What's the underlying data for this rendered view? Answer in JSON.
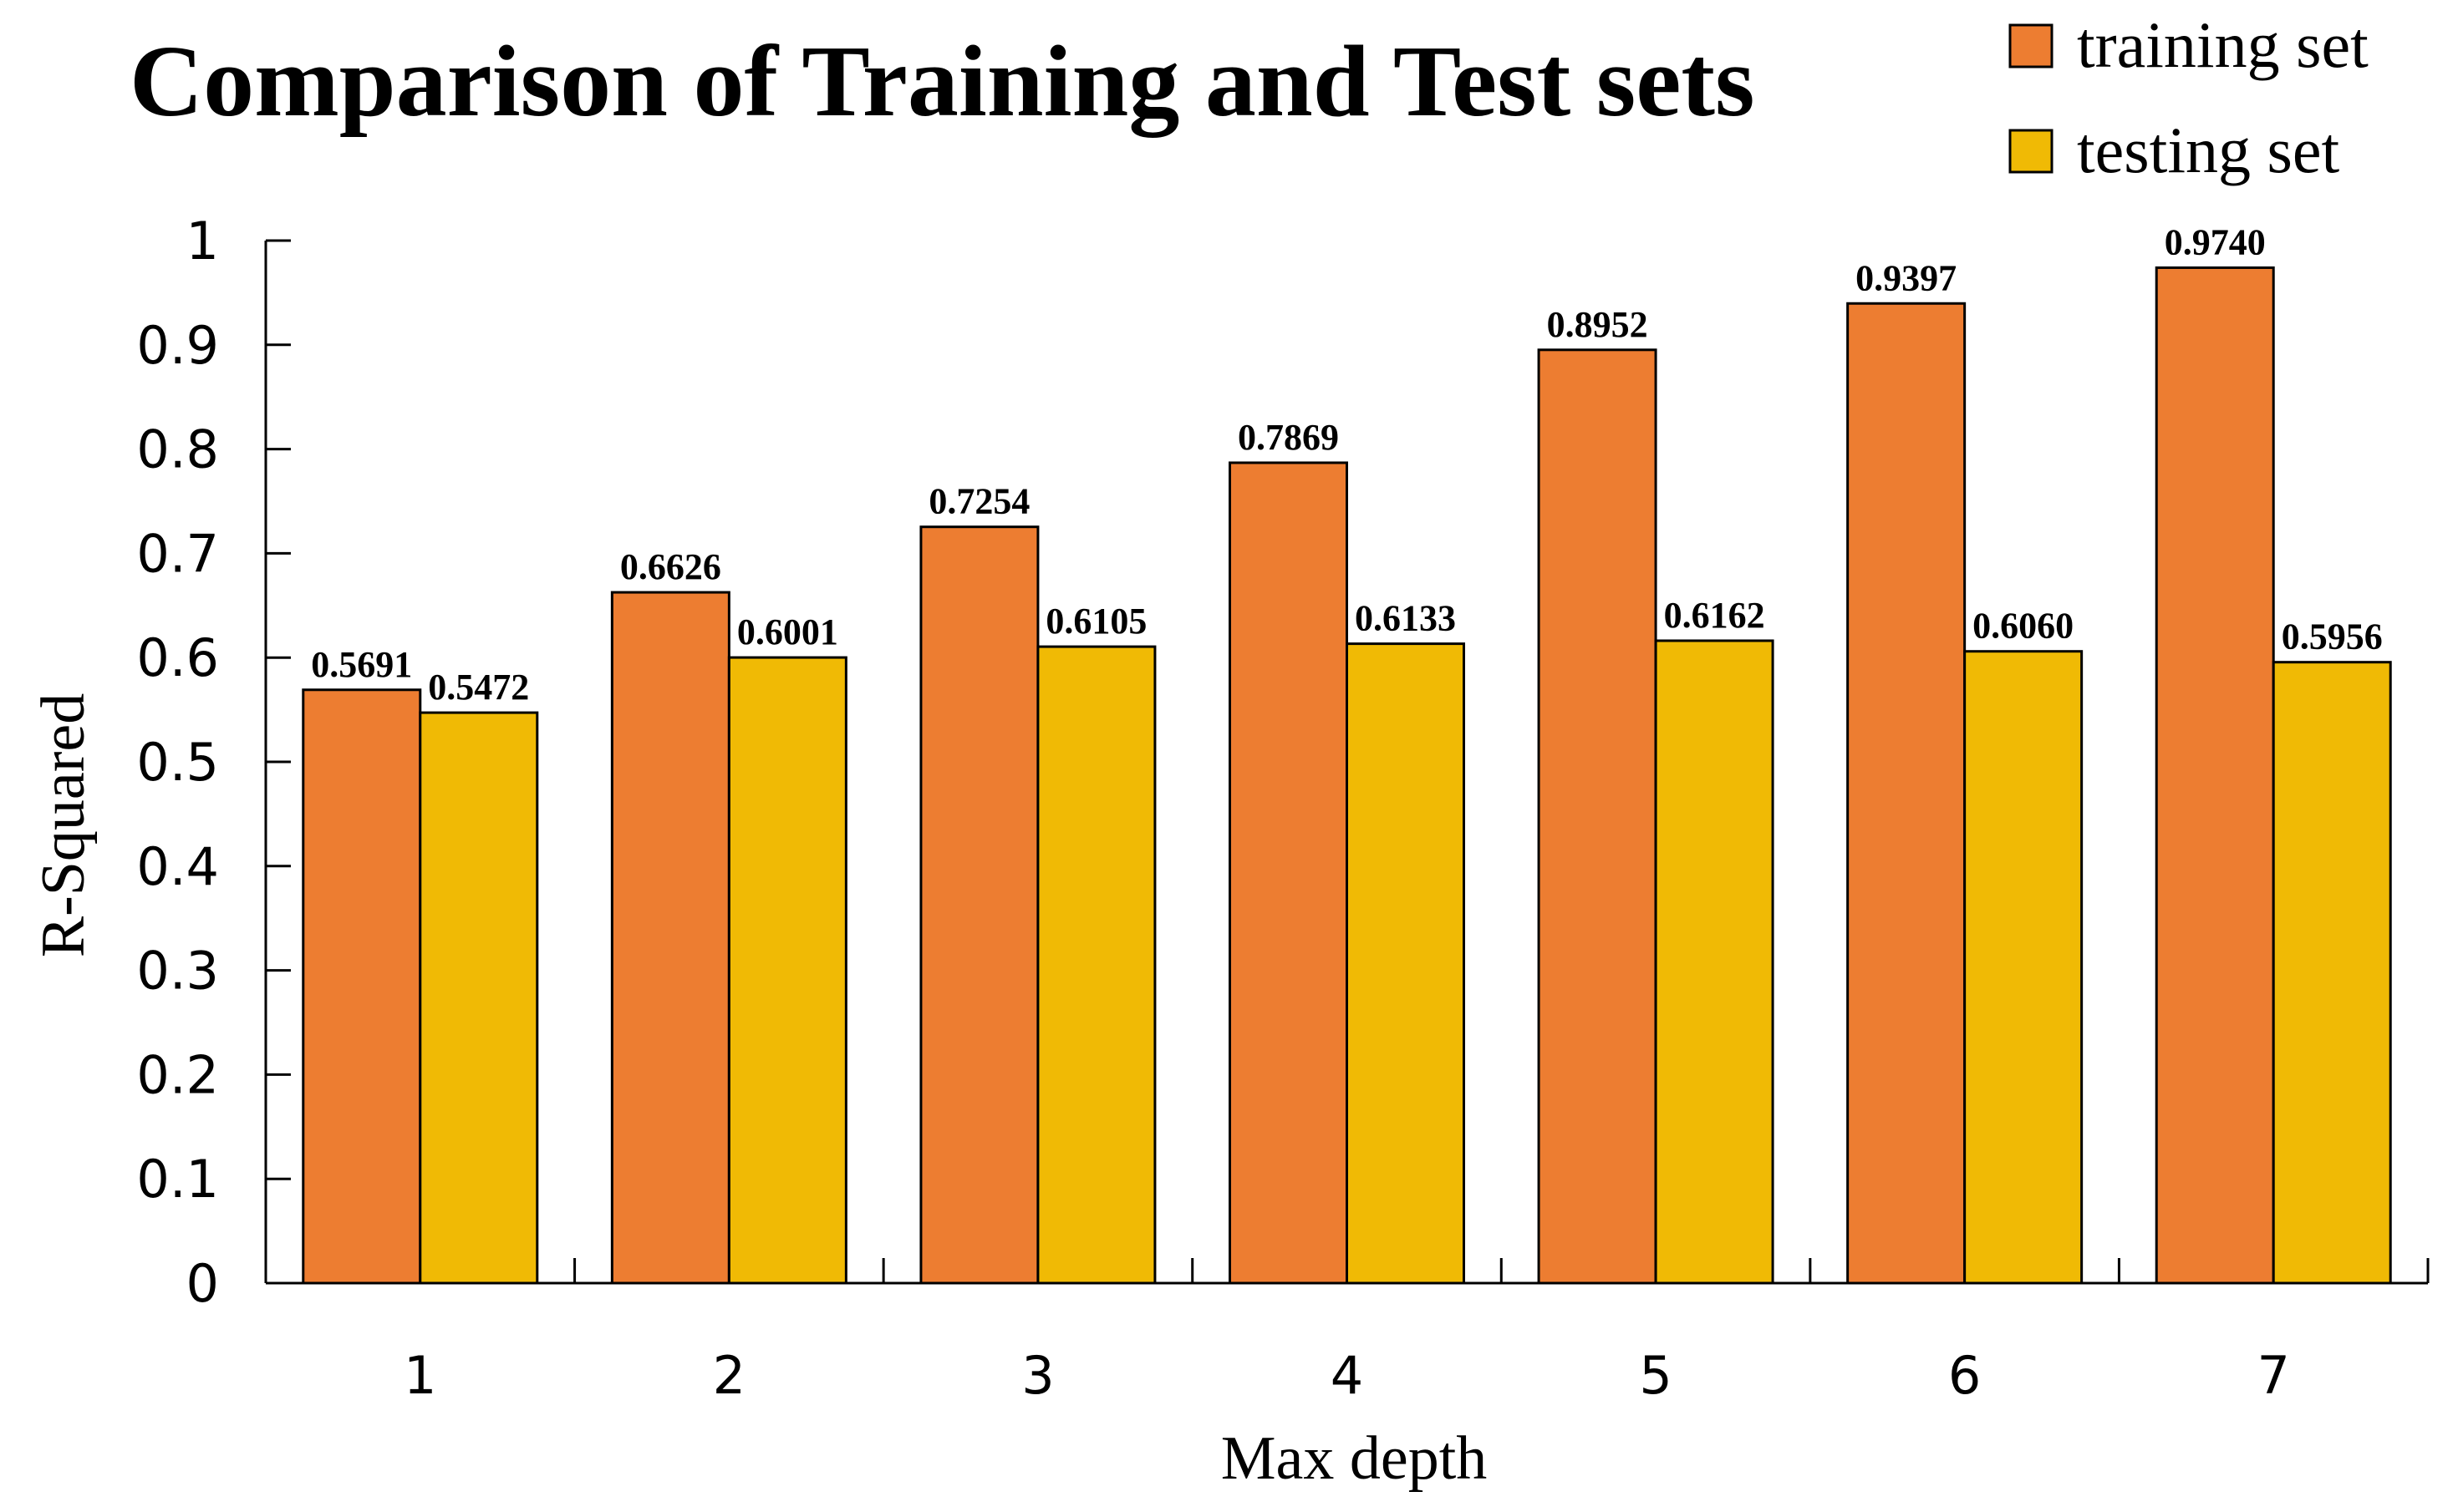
{
  "chart_data": {
    "type": "bar",
    "title": "Comparison of Training and Test sets",
    "xlabel": "Max depth",
    "ylabel": "R-Squared",
    "ylim": [
      0,
      1
    ],
    "yticks": [
      "0",
      "0.1",
      "0.2",
      "0.3",
      "0.4",
      "0.5",
      "0.6",
      "0.7",
      "0.8",
      "0.9",
      "1"
    ],
    "categories": [
      "1",
      "2",
      "3",
      "4",
      "5",
      "6",
      "7"
    ],
    "series": [
      {
        "name": "training set",
        "color": "#ED7D31",
        "values": [
          0.5691,
          0.6626,
          0.7254,
          0.7869,
          0.8952,
          0.9397,
          0.974
        ],
        "labels": [
          "0.5691",
          "0.6626",
          "0.7254",
          "0.7869",
          "0.8952",
          "0.9397",
          "0.9740"
        ]
      },
      {
        "name": "testing set",
        "color": "#F0BA05",
        "values": [
          0.5472,
          0.6001,
          0.6105,
          0.6133,
          0.6162,
          0.606,
          0.5956
        ],
        "labels": [
          "0.5472",
          "0.6001",
          "0.6105",
          "0.6133",
          "0.6162",
          "0.6060",
          "0.5956"
        ]
      }
    ],
    "legend": "top-right",
    "grid": false
  }
}
